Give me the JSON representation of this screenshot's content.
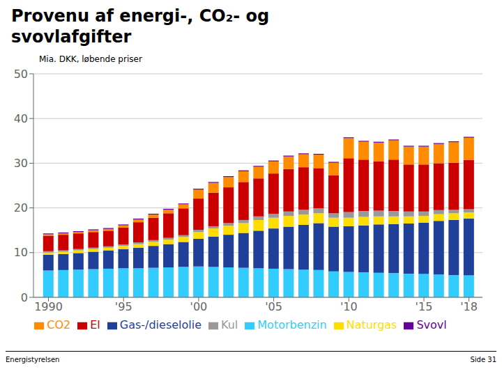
{
  "chart_data": {
    "type": "bar",
    "stacked": true,
    "title": "Provenu af energi-, CO₂- og svovlafgifter",
    "subtitle": "Mia. DKK, løbende priser",
    "annotations": [
      "Energistyrelsen",
      "Side 31"
    ],
    "x": [
      1990,
      1991,
      1992,
      1993,
      1994,
      1995,
      1996,
      1997,
      1998,
      1999,
      2000,
      2001,
      2002,
      2003,
      2004,
      2005,
      2006,
      2007,
      2008,
      2009,
      2010,
      2011,
      2012,
      2013,
      2014,
      2015,
      2016,
      2017,
      2018
    ],
    "series": [
      {
        "name": "Motorbenzin",
        "color": "#33CCFF",
        "values": [
          6.0,
          6.1,
          6.2,
          6.3,
          6.4,
          6.5,
          6.5,
          6.6,
          6.7,
          6.8,
          6.9,
          6.8,
          6.7,
          6.6,
          6.5,
          6.4,
          6.3,
          6.2,
          6.1,
          5.8,
          5.7,
          5.6,
          5.5,
          5.4,
          5.3,
          5.2,
          5.1,
          5.0,
          4.9
        ]
      },
      {
        "name": "Gas-/dieselolie",
        "color": "#1F3F99",
        "values": [
          3.5,
          3.6,
          3.7,
          3.9,
          4.1,
          4.3,
          4.6,
          4.9,
          5.2,
          5.6,
          6.2,
          6.8,
          7.3,
          7.8,
          8.4,
          9.0,
          9.5,
          10.0,
          10.5,
          10.0,
          10.2,
          10.5,
          10.8,
          11.0,
          11.2,
          11.5,
          12.0,
          12.3,
          12.7
        ]
      },
      {
        "name": "Naturgas",
        "color": "#FFDD00",
        "values": [
          0.5,
          0.5,
          0.6,
          0.6,
          0.6,
          0.7,
          0.8,
          0.9,
          1.0,
          1.1,
          1.5,
          1.8,
          2.0,
          2.2,
          2.4,
          2.4,
          2.4,
          2.3,
          2.2,
          2.0,
          1.9,
          1.9,
          1.8,
          1.7,
          1.6,
          1.5,
          1.5,
          1.5,
          1.4
        ]
      },
      {
        "name": "Kul",
        "color": "#999999",
        "values": [
          0.3,
          0.3,
          0.3,
          0.3,
          0.3,
          0.3,
          0.4,
          0.4,
          0.4,
          0.4,
          0.5,
          0.5,
          0.6,
          0.7,
          0.8,
          0.9,
          1.0,
          1.1,
          1.1,
          1.0,
          1.3,
          1.3,
          1.3,
          1.2,
          1.1,
          1.0,
          0.9,
          0.8,
          0.7
        ]
      },
      {
        "name": "El",
        "color": "#CC0000",
        "values": [
          3.5,
          3.5,
          3.5,
          3.5,
          3.5,
          3.8,
          4.5,
          5.0,
          5.5,
          6.0,
          7.0,
          7.5,
          8.0,
          8.5,
          8.5,
          9.0,
          9.5,
          9.5,
          9.0,
          8.5,
          12.0,
          11.5,
          11.0,
          11.5,
          10.5,
          10.5,
          10.5,
          10.5,
          11.0
        ]
      },
      {
        "name": "CO2",
        "color": "#FF8C00",
        "values": [
          0.3,
          0.3,
          0.3,
          0.4,
          0.4,
          0.5,
          0.6,
          0.7,
          0.8,
          0.9,
          2.0,
          2.2,
          2.3,
          2.4,
          2.6,
          2.7,
          2.8,
          2.9,
          3.0,
          2.8,
          4.5,
          4.0,
          4.2,
          4.3,
          4.0,
          4.0,
          4.3,
          4.6,
          5.0
        ]
      },
      {
        "name": "Svovl",
        "color": "#660099",
        "values": [
          0.2,
          0.2,
          0.2,
          0.2,
          0.2,
          0.2,
          0.2,
          0.2,
          0.2,
          0.2,
          0.2,
          0.2,
          0.2,
          0.2,
          0.2,
          0.2,
          0.2,
          0.2,
          0.2,
          0.2,
          0.2,
          0.2,
          0.2,
          0.2,
          0.2,
          0.2,
          0.2,
          0.2,
          0.2
        ]
      }
    ],
    "xlim": [
      1989,
      2018.9
    ],
    "xticks": [
      1990,
      {
        "value": 1995,
        "label": "'95"
      },
      {
        "value": 2000,
        "label": "'00"
      },
      {
        "value": 2005,
        "label": "'05"
      },
      {
        "value": 2010,
        "label": "'10"
      },
      {
        "value": 2015,
        "label": "'15"
      },
      {
        "value": 2018,
        "label": "'18"
      }
    ],
    "ylim": [
      0,
      50
    ],
    "yticks": [
      0,
      10,
      20,
      30,
      40,
      50
    ],
    "grid": true,
    "legend": "bottom"
  }
}
